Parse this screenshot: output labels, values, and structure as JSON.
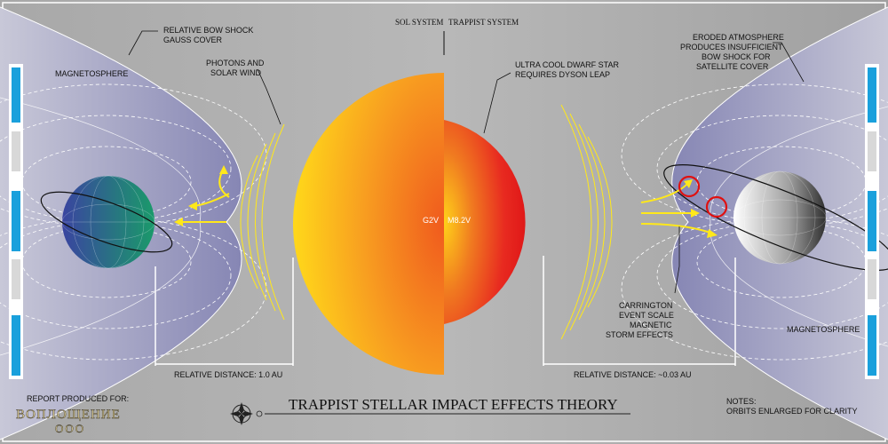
{
  "header": {
    "sol_system": "SOL SYSTEM",
    "trappist_system": "TRAPPIST SYSTEM"
  },
  "labels": {
    "relative_bow_shock_l1": "RELATIVE BOW SHOCK",
    "relative_bow_shock_l2": "GAUSS COVER",
    "magnetosphere_left": "MAGNETOSPHERE",
    "photons_l1": "PHOTONS AND",
    "photons_l2": "SOLAR WIND",
    "ultra_cool_l1": "ULTRA COOL DWARF STAR",
    "ultra_cool_l2": "REQUIRES DYSON LEAP",
    "eroded_l1": "ERODED ATMOSPHERE",
    "eroded_l2": "PRODUCES INSUFFICIENT",
    "eroded_l3": "BOW SHOCK FOR",
    "eroded_l4": "SATELLITE COVER",
    "magnetosphere_right": "MAGNETOSPHERE",
    "carrington_l1": "CARRINGTON",
    "carrington_l2": "EVENT SCALE",
    "carrington_l3": "MAGNETIC",
    "carrington_l4": "STORM EFFECTS",
    "g2v": "G2V",
    "m82v": "M8.2V",
    "distance_left": "RELATIVE DISTANCE: 1.0 AU",
    "distance_right": "RELATIVE DISTANCE: ~0.03 AU"
  },
  "footer": {
    "report_for": "REPORT PRODUCED FOR:",
    "org_name_l1": "ВОПЛОЩЕНИЕ",
    "org_name_l2": "ООО",
    "title": "TRAPPIST STELLAR IMPACT EFFECTS THEORY",
    "notes_heading": "NOTES:",
    "notes_text": "ORBITS ENLARGED FOR CLARITY"
  },
  "colors": {
    "background": "#9a9a9a",
    "magnetosphere": "#8f8fb8",
    "sun_outer": "#ffd21a",
    "sun_inner": "#f05a1e",
    "dwarf_outer": "#e82020",
    "dwarf_inner": "#ffd21a",
    "arrow": "#ffe81a",
    "earth_blue": "#3a4fa0",
    "earth_green": "#1f8c6a",
    "marker_blue": "#1aa0dc",
    "marker_red": "#e01010"
  }
}
